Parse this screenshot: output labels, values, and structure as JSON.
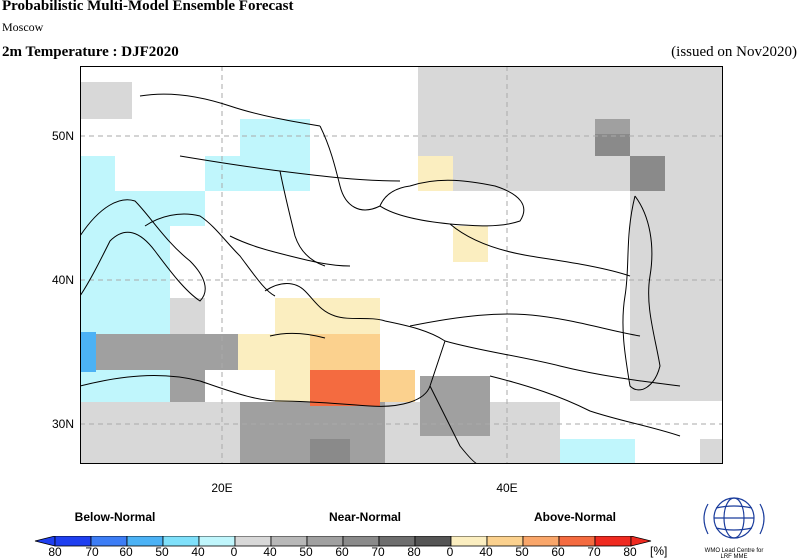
{
  "header": {
    "title": "Probabilistic Multi-Model Ensemble Forecast",
    "subtitle": "Moscow",
    "variable_label": "2m Temperature : DJF2020",
    "issued": "(issued on Nov2020)"
  },
  "map": {
    "lat_labels": [
      "50N",
      "40N",
      "30N"
    ],
    "lon_labels": [
      "20E",
      "40E"
    ],
    "land_color": "#ffffff",
    "coastline_color": "#000000",
    "grid_color": "#aaaaaa"
  },
  "legend": {
    "categories": [
      "Below-Normal",
      "Near-Normal",
      "Above-Normal"
    ],
    "ticks": [
      "80",
      "70",
      "60",
      "50",
      "40",
      "0",
      "40",
      "50",
      "60",
      "70",
      "80",
      "0",
      "40",
      "50",
      "60",
      "70",
      "80"
    ],
    "unit": "[%]",
    "colors": {
      "below": [
        "#1f3ff0",
        "#3d7df5",
        "#4cb2f5",
        "#7fe0fa",
        "#c0f6fc"
      ],
      "near": [
        "#d8d8d8",
        "#b8b8b8",
        "#a0a0a0",
        "#8a8a8a",
        "#6e6e6e",
        "#555555"
      ],
      "above": [
        "#fbeec0",
        "#fbd18e",
        "#f9a66a",
        "#f46b40",
        "#ef2a20"
      ]
    }
  },
  "logo": {
    "line1": "WMO Lead Centre for",
    "line2": "LRF MME"
  }
}
